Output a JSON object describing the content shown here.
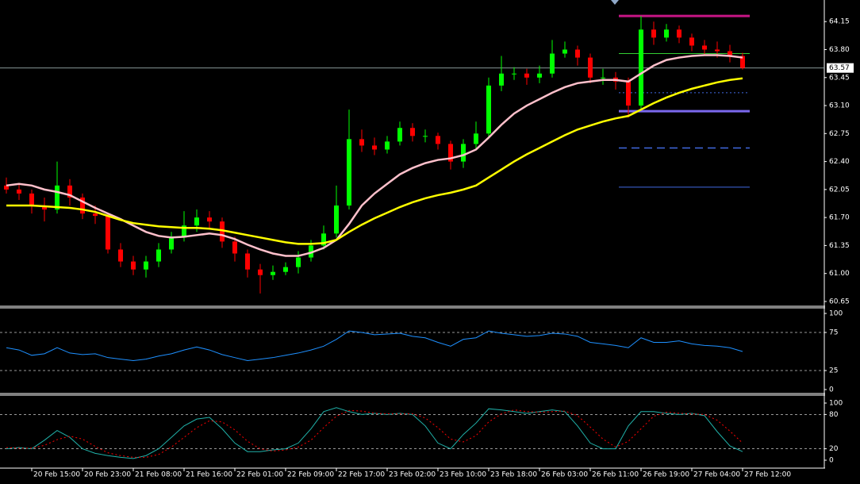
{
  "chart_data": [
    {
      "type": "candlestick",
      "categories": [
        null,
        null,
        "20 Feb 15:00",
        null,
        null,
        null,
        "20 Feb 23:00",
        null,
        null,
        null,
        "21 Feb 08:00",
        null,
        null,
        null,
        "21 Feb 16:00",
        null,
        null,
        null,
        "22 Feb 01:00",
        null,
        null,
        null,
        "22 Feb 09:00",
        null,
        null,
        null,
        "22 Feb 17:00",
        null,
        null,
        null,
        "23 Feb 02:00",
        null,
        null,
        null,
        "23 Feb 10:00",
        null,
        null,
        null,
        "23 Feb 18:00",
        null,
        null,
        null,
        "26 Feb 03:00",
        null,
        null,
        null,
        "26 Feb 11:00",
        null,
        null,
        null,
        "26 Feb 19:00",
        null,
        null,
        null,
        "27 Feb 04:00",
        null,
        null,
        null,
        "27 Feb 12:00"
      ],
      "open": [
        62.1,
        62.05,
        62.0,
        61.85,
        61.8,
        62.1,
        61.95,
        61.75,
        61.72,
        61.3,
        61.15,
        61.05,
        61.15,
        61.3,
        61.45,
        61.6,
        61.7,
        61.65,
        61.4,
        61.25,
        61.05,
        60.98,
        61.02,
        61.08,
        61.2,
        61.35,
        61.5,
        61.85,
        62.68,
        62.6,
        62.55,
        62.65,
        62.82,
        62.72,
        62.72,
        62.62,
        62.4,
        62.62,
        62.75,
        63.35,
        63.5,
        63.5,
        63.45,
        63.5,
        63.75,
        63.8,
        63.7,
        63.45,
        63.45,
        63.4,
        63.1,
        64.05,
        63.95,
        64.05,
        63.95,
        63.85,
        63.8,
        63.78,
        63.72
      ],
      "high": [
        62.2,
        62.12,
        62.05,
        61.95,
        62.4,
        62.18,
        62.0,
        61.85,
        61.76,
        61.38,
        61.22,
        61.22,
        61.38,
        61.52,
        61.78,
        61.8,
        61.78,
        61.7,
        61.46,
        61.3,
        61.12,
        61.1,
        61.14,
        61.28,
        61.42,
        61.6,
        62.1,
        63.05,
        62.8,
        62.7,
        62.72,
        62.9,
        62.88,
        62.8,
        62.76,
        62.66,
        62.68,
        62.9,
        63.45,
        63.72,
        63.58,
        63.56,
        63.6,
        63.92,
        63.9,
        63.85,
        63.75,
        63.56,
        63.52,
        63.45,
        64.22,
        64.15,
        64.12,
        64.1,
        64.0,
        63.92,
        63.9,
        63.86,
        63.76
      ],
      "low": [
        62.0,
        61.92,
        61.75,
        61.65,
        61.75,
        61.85,
        61.68,
        61.62,
        61.25,
        61.08,
        60.98,
        60.95,
        61.08,
        61.25,
        61.4,
        61.52,
        61.55,
        61.32,
        61.15,
        60.95,
        60.75,
        60.92,
        60.98,
        61.0,
        61.15,
        61.3,
        61.45,
        61.8,
        62.52,
        62.48,
        62.5,
        62.6,
        62.65,
        62.64,
        62.55,
        62.3,
        62.32,
        62.55,
        62.7,
        63.28,
        63.42,
        63.36,
        63.38,
        63.45,
        63.7,
        63.6,
        63.38,
        63.36,
        63.3,
        62.95,
        63.05,
        63.86,
        63.9,
        63.88,
        63.78,
        63.72,
        63.7,
        63.64,
        63.55
      ],
      "close": [
        62.05,
        62.0,
        61.85,
        61.8,
        62.1,
        61.95,
        61.75,
        61.72,
        61.3,
        61.15,
        61.05,
        61.15,
        61.3,
        61.45,
        61.6,
        61.7,
        61.65,
        61.4,
        61.25,
        61.05,
        60.98,
        61.02,
        61.08,
        61.2,
        61.35,
        61.5,
        61.85,
        62.68,
        62.6,
        62.55,
        62.65,
        62.82,
        62.72,
        62.72,
        62.62,
        62.4,
        62.62,
        62.75,
        63.35,
        63.5,
        63.5,
        63.45,
        63.5,
        63.75,
        63.8,
        63.7,
        63.45,
        63.45,
        63.4,
        63.1,
        64.05,
        63.95,
        64.05,
        63.95,
        63.85,
        63.8,
        63.78,
        63.72,
        63.57
      ],
      "up_color": "#00ff00",
      "down_color": "#ff0000",
      "overlays": [
        {
          "color": "#ffc0cb",
          "values": [
            62.1,
            62.12,
            62.1,
            62.05,
            62.02,
            61.98,
            61.9,
            61.82,
            61.75,
            61.68,
            61.6,
            61.52,
            61.47,
            61.45,
            61.46,
            61.48,
            61.5,
            61.48,
            61.43,
            61.36,
            61.3,
            61.25,
            61.22,
            61.22,
            61.26,
            61.32,
            61.42,
            61.62,
            61.85,
            62.0,
            62.12,
            62.24,
            62.32,
            62.38,
            62.42,
            62.44,
            62.48,
            62.55,
            62.7,
            62.86,
            63.0,
            63.1,
            63.18,
            63.26,
            63.33,
            63.38,
            63.4,
            63.42,
            63.42,
            63.4,
            63.5,
            63.6,
            63.67,
            63.7,
            63.72,
            63.73,
            63.73,
            63.72,
            63.7
          ]
        },
        {
          "color": "#ffff00",
          "values": [
            61.85,
            61.85,
            61.85,
            61.84,
            61.83,
            61.82,
            61.8,
            61.77,
            61.72,
            61.67,
            61.63,
            61.61,
            61.59,
            61.58,
            61.57,
            61.57,
            61.56,
            61.54,
            61.51,
            61.48,
            61.45,
            61.42,
            61.39,
            61.37,
            61.37,
            61.38,
            61.42,
            61.52,
            61.61,
            61.69,
            61.76,
            61.83,
            61.89,
            61.94,
            61.98,
            62.01,
            62.05,
            62.1,
            62.2,
            62.3,
            62.4,
            62.49,
            62.57,
            62.65,
            62.73,
            62.8,
            62.85,
            62.9,
            62.94,
            62.97,
            63.05,
            63.13,
            63.2,
            63.26,
            63.31,
            63.35,
            63.39,
            63.42,
            63.44
          ]
        }
      ],
      "levels": [
        {
          "value": 64.22,
          "color": "#c71585",
          "width": 3,
          "style": "solid"
        },
        {
          "value": 63.75,
          "color": "#32cd32",
          "width": 1,
          "style": "solid"
        },
        {
          "value": 63.26,
          "color": "#4169e1",
          "width": 1,
          "style": "dotted"
        },
        {
          "value": 63.03,
          "color": "#7b68ee",
          "width": 3,
          "style": "solid"
        },
        {
          "value": 62.57,
          "color": "#4169e1",
          "width": 1.5,
          "style": "dashed"
        },
        {
          "value": 62.08,
          "color": "#4169e1",
          "width": 1,
          "style": "solid"
        }
      ],
      "last_price": 63.57,
      "ylim": [
        60.6,
        64.42
      ],
      "yticks": [
        64.15,
        {
          "value": 63.8,
          "label": "63.80"
        },
        63.45,
        {
          "value": 63.1,
          "label": "63.10"
        },
        62.75,
        {
          "value": 62.4,
          "label": "62.40"
        },
        62.05,
        {
          "value": 61.7,
          "label": "61.70"
        },
        61.35,
        {
          "value": 61,
          "label": "61.00"
        },
        60.65
      ]
    },
    {
      "type": "line",
      "series": [
        {
          "color": "#1e90ff",
          "style": "solid",
          "values": [
            55,
            52,
            45,
            47,
            55,
            48,
            46,
            47,
            42,
            40,
            38,
            40,
            44,
            47,
            52,
            56,
            52,
            46,
            42,
            38,
            40,
            42,
            45,
            48,
            52,
            57,
            66,
            77,
            75,
            72,
            73,
            74,
            70,
            68,
            62,
            57,
            66,
            68,
            77,
            74,
            72,
            70,
            71,
            74,
            73,
            70,
            62,
            60,
            58,
            55,
            68,
            62,
            62,
            64,
            60,
            58,
            57,
            55,
            50
          ]
        }
      ],
      "levels": [
        25,
        75
      ],
      "ylim": [
        -4.2,
        106.3
      ],
      "yticks": [
        0,
        25,
        75,
        100
      ]
    },
    {
      "type": "line",
      "series": [
        {
          "color": "#20b2aa",
          "style": "solid",
          "values": [
            20,
            22,
            20,
            35,
            52,
            40,
            20,
            12,
            8,
            5,
            3,
            8,
            20,
            40,
            60,
            72,
            75,
            55,
            30,
            15,
            15,
            18,
            20,
            30,
            55,
            85,
            92,
            85,
            80,
            82,
            80,
            82,
            80,
            60,
            30,
            20,
            45,
            65,
            90,
            88,
            85,
            82,
            85,
            88,
            85,
            60,
            30,
            20,
            20,
            60,
            85,
            85,
            82,
            80,
            82,
            78,
            50,
            25,
            15
          ]
        },
        {
          "color": "#ff0000",
          "style": "dashed",
          "values": [
            22,
            21,
            21,
            26,
            36,
            42,
            37,
            24,
            13,
            8,
            5,
            5,
            10,
            23,
            40,
            57,
            69,
            67,
            53,
            33,
            20,
            16,
            18,
            23,
            35,
            57,
            77,
            87,
            86,
            82,
            81,
            81,
            81,
            74,
            57,
            37,
            32,
            43,
            67,
            81,
            88,
            85,
            84,
            85,
            86,
            78,
            58,
            37,
            23,
            33,
            55,
            77,
            84,
            82,
            81,
            80,
            70,
            51,
            30
          ]
        }
      ],
      "levels": [
        20,
        80
      ],
      "ylim": [
        -13.9,
        112.5
      ],
      "yticks": [
        0,
        20,
        80,
        100
      ]
    }
  ]
}
